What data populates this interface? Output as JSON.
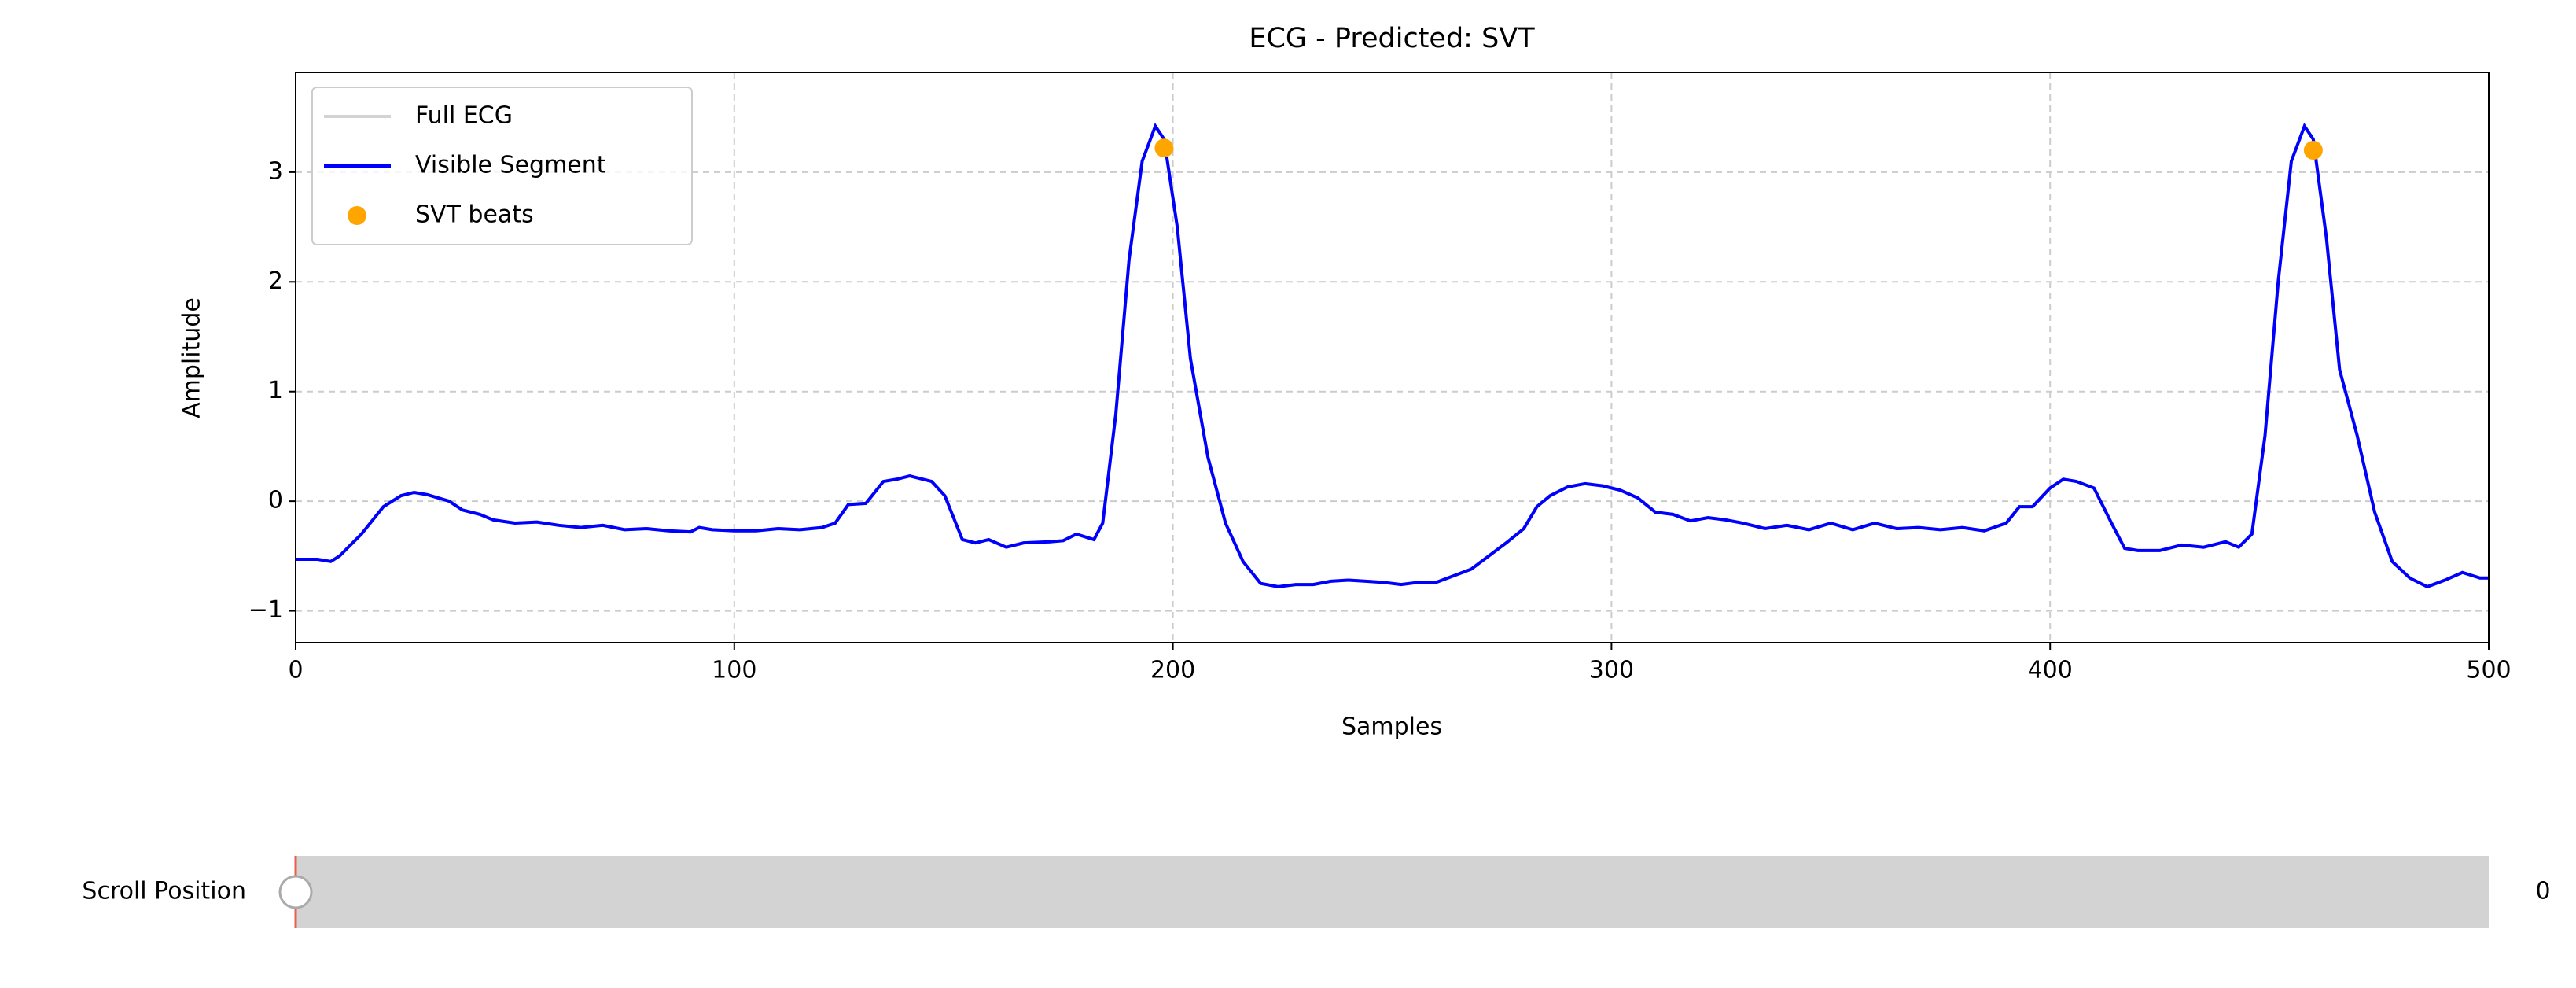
{
  "chart_data": {
    "type": "line",
    "title": "ECG - Predicted: SVT",
    "xlabel": "Samples",
    "ylabel": "Amplitude",
    "xlim": [
      0,
      500
    ],
    "ylim": [
      -1.29,
      3.91
    ],
    "xticks": [
      0,
      100,
      200,
      300,
      400,
      500
    ],
    "yticks": [
      {
        "value": -1,
        "label": "−1"
      },
      0,
      1,
      2,
      3
    ],
    "grid": true,
    "legend": "upper left",
    "x": [
      0,
      5,
      8,
      10,
      15,
      20,
      24,
      27,
      30,
      35,
      38,
      42,
      45,
      50,
      55,
      60,
      65,
      70,
      75,
      80,
      85,
      90,
      92,
      95,
      100,
      105,
      110,
      115,
      120,
      123,
      126,
      130,
      134,
      137,
      140,
      145,
      148,
      152,
      155,
      158,
      162,
      166,
      172,
      175,
      178,
      182,
      184,
      187,
      190,
      193,
      196,
      198,
      201,
      204,
      208,
      212,
      216,
      220,
      224,
      228,
      232,
      236,
      240,
      244,
      248,
      252,
      256,
      260,
      264,
      268,
      272,
      276,
      280,
      283,
      286,
      290,
      294,
      298,
      302,
      306,
      310,
      314,
      318,
      322,
      326,
      330,
      335,
      340,
      345,
      350,
      355,
      360,
      365,
      370,
      375,
      380,
      385,
      390,
      393,
      396,
      400,
      403,
      406,
      410,
      414,
      417,
      420,
      425,
      430,
      435,
      440,
      443,
      446,
      449,
      452,
      455,
      458,
      460,
      463,
      466,
      470,
      474,
      478,
      482,
      486,
      490,
      494,
      498,
      500
    ],
    "series": [
      {
        "name": "Full ECG",
        "color": "#d3d3d3",
        "values": [
          -0.53,
          -0.53,
          -0.55,
          -0.5,
          -0.3,
          -0.05,
          0.05,
          0.08,
          0.06,
          0.0,
          -0.08,
          -0.12,
          -0.17,
          -0.2,
          -0.19,
          -0.22,
          -0.24,
          -0.22,
          -0.26,
          -0.25,
          -0.27,
          -0.28,
          -0.24,
          -0.26,
          -0.27,
          -0.27,
          -0.25,
          -0.26,
          -0.24,
          -0.2,
          -0.03,
          -0.02,
          0.18,
          0.2,
          0.23,
          0.18,
          0.05,
          -0.35,
          -0.38,
          -0.35,
          -0.42,
          -0.38,
          -0.37,
          -0.36,
          -0.3,
          -0.35,
          -0.2,
          0.8,
          2.2,
          3.1,
          3.42,
          3.3,
          2.5,
          1.3,
          0.4,
          -0.2,
          -0.55,
          -0.75,
          -0.78,
          -0.76,
          -0.76,
          -0.73,
          -0.72,
          -0.73,
          -0.74,
          -0.76,
          -0.74,
          -0.74,
          -0.68,
          -0.62,
          -0.5,
          -0.38,
          -0.25,
          -0.05,
          0.05,
          0.13,
          0.16,
          0.14,
          0.1,
          0.03,
          -0.1,
          -0.12,
          -0.18,
          -0.15,
          -0.17,
          -0.2,
          -0.25,
          -0.22,
          -0.26,
          -0.2,
          -0.26,
          -0.2,
          -0.25,
          -0.24,
          -0.26,
          -0.24,
          -0.27,
          -0.2,
          -0.05,
          -0.05,
          0.12,
          0.2,
          0.18,
          0.12,
          -0.2,
          -0.43,
          -0.45,
          -0.45,
          -0.4,
          -0.42,
          -0.37,
          -0.42,
          -0.3,
          0.6,
          2.0,
          3.1,
          3.42,
          3.3,
          2.4,
          1.2,
          0.6,
          -0.1,
          -0.55,
          -0.7,
          -0.78,
          -0.72,
          -0.65,
          -0.7,
          -0.7
        ]
      },
      {
        "name": "Visible Segment",
        "color": "#0000ff",
        "values": [
          -0.53,
          -0.53,
          -0.55,
          -0.5,
          -0.3,
          -0.05,
          0.05,
          0.08,
          0.06,
          0.0,
          -0.08,
          -0.12,
          -0.17,
          -0.2,
          -0.19,
          -0.22,
          -0.24,
          -0.22,
          -0.26,
          -0.25,
          -0.27,
          -0.28,
          -0.24,
          -0.26,
          -0.27,
          -0.27,
          -0.25,
          -0.26,
          -0.24,
          -0.2,
          -0.03,
          -0.02,
          0.18,
          0.2,
          0.23,
          0.18,
          0.05,
          -0.35,
          -0.38,
          -0.35,
          -0.42,
          -0.38,
          -0.37,
          -0.36,
          -0.3,
          -0.35,
          -0.2,
          0.8,
          2.2,
          3.1,
          3.42,
          3.3,
          2.5,
          1.3,
          0.4,
          -0.2,
          -0.55,
          -0.75,
          -0.78,
          -0.76,
          -0.76,
          -0.73,
          -0.72,
          -0.73,
          -0.74,
          -0.76,
          -0.74,
          -0.74,
          -0.68,
          -0.62,
          -0.5,
          -0.38,
          -0.25,
          -0.05,
          0.05,
          0.13,
          0.16,
          0.14,
          0.1,
          0.03,
          -0.1,
          -0.12,
          -0.18,
          -0.15,
          -0.17,
          -0.2,
          -0.25,
          -0.22,
          -0.26,
          -0.2,
          -0.26,
          -0.2,
          -0.25,
          -0.24,
          -0.26,
          -0.24,
          -0.27,
          -0.2,
          -0.05,
          -0.05,
          0.12,
          0.2,
          0.18,
          0.12,
          -0.2,
          -0.43,
          -0.45,
          -0.45,
          -0.4,
          -0.42,
          -0.37,
          -0.42,
          -0.3,
          0.6,
          2.0,
          3.1,
          3.42,
          3.3,
          2.4,
          1.2,
          0.6,
          -0.1,
          -0.55,
          -0.7,
          -0.78,
          -0.72,
          -0.65,
          -0.7,
          -0.7
        ]
      }
    ],
    "scatter": {
      "name": "SVT beats",
      "color": "#ffa500",
      "x": [
        198,
        460
      ],
      "values": [
        3.22,
        3.2
      ]
    }
  },
  "slider": {
    "label": "Scroll Position",
    "value": 0
  }
}
